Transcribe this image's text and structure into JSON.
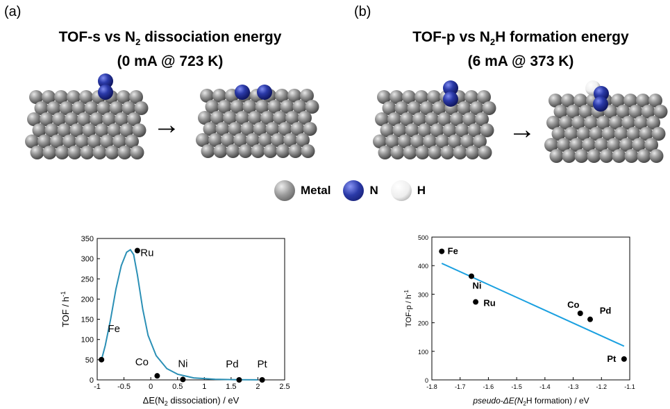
{
  "panels": [
    {
      "label": "(a)",
      "title_line1_pre": "TOF-s vs N",
      "title_line1_sub": "2",
      "title_line1_post": " dissociation energy",
      "title_line2": "(0 mA @ 723 K)"
    },
    {
      "label": "(b)",
      "title_line1_pre": "TOF-p vs N",
      "title_line1_sub": "2",
      "title_line1_post": "H formation energy",
      "title_line2": "(6 mA @ 373 K)"
    }
  ],
  "legend": [
    {
      "label": "Metal",
      "color": "#8a8a8a"
    },
    {
      "label": "N",
      "color": "#2b3aa8"
    },
    {
      "label": "H",
      "color": "#ffffff"
    }
  ],
  "arrow_glyph": "→",
  "colors": {
    "curve": "#2a8fb5",
    "fit_line": "#1aa0e0",
    "point": "#000000",
    "metal": "#8a8a8a",
    "nitrogen": "#2b3aa8"
  },
  "chart_data": [
    {
      "type": "scatter",
      "xlabel_pre": "ΔE(N",
      "xlabel_sub": "2",
      "xlabel_post": " dissociation) / eV",
      "ylabel": "TOF / h",
      "ylabel_sup": "-1",
      "xlim": [
        -1,
        2.5
      ],
      "ylim": [
        0,
        350
      ],
      "xticks": [
        -1,
        -0.5,
        0,
        0.5,
        1,
        1.5,
        2,
        2.5
      ],
      "yticks": [
        0,
        50,
        100,
        150,
        200,
        250,
        300,
        350
      ],
      "points": [
        {
          "name": "Fe",
          "x": -0.92,
          "y": 50
        },
        {
          "name": "Ru",
          "x": -0.25,
          "y": 320
        },
        {
          "name": "Co",
          "x": 0.12,
          "y": 10
        },
        {
          "name": "Ni",
          "x": 0.6,
          "y": 1
        },
        {
          "name": "Pd",
          "x": 1.65,
          "y": 0
        },
        {
          "name": "Pt",
          "x": 2.08,
          "y": 0
        }
      ],
      "curve": {
        "x": [
          -0.92,
          -0.85,
          -0.75,
          -0.65,
          -0.55,
          -0.45,
          -0.38,
          -0.32,
          -0.25,
          -0.15,
          -0.05,
          0.1,
          0.3,
          0.5,
          0.8,
          1.2,
          1.6,
          2.0
        ],
        "y": [
          50,
          85,
          150,
          225,
          283,
          316,
          322,
          310,
          260,
          175,
          110,
          60,
          28,
          14,
          5,
          1.5,
          0.5,
          0.2
        ]
      }
    },
    {
      "type": "scatter",
      "xlabel_pre": "pseudo-ΔE(N",
      "xlabel_sub": "2",
      "xlabel_post": "H formation) / eV",
      "ylabel": "TOF-p / h",
      "ylabel_sup": "-1",
      "xlim": [
        -1.8,
        -1.1
      ],
      "ylim": [
        0,
        500
      ],
      "xticks": [
        -1.8,
        -1.7,
        -1.6,
        -1.5,
        -1.4,
        -1.3,
        -1.2,
        -1.1
      ],
      "yticks": [
        0,
        100,
        200,
        300,
        400,
        500
      ],
      "points": [
        {
          "name": "Fe",
          "x": -1.765,
          "y": 450
        },
        {
          "name": "Ni",
          "x": -1.66,
          "y": 363
        },
        {
          "name": "Ru",
          "x": -1.645,
          "y": 273
        },
        {
          "name": "Co",
          "x": -1.275,
          "y": 233
        },
        {
          "name": "Pd",
          "x": -1.24,
          "y": 212
        },
        {
          "name": "Pt",
          "x": -1.12,
          "y": 73
        }
      ],
      "fit_line": {
        "x": [
          -1.765,
          -1.12
        ],
        "y": [
          408,
          118
        ]
      }
    }
  ]
}
